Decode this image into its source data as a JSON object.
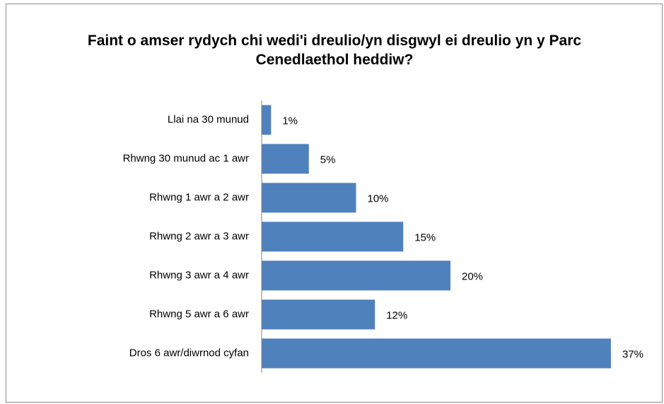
{
  "chart_data": {
    "type": "bar",
    "orientation": "horizontal",
    "title": "Faint o amser rydych chi wedi'i dreulio/yn disgwyl ei dreulio yn y Parc Cenedlaethol heddiw?",
    "categories": [
      "Llai na 30 munud",
      "Rhwng 30 munud ac 1 awr",
      "Rhwng 1 awr a 2 awr",
      "Rhwng 2 awr a 3 awr",
      "Rhwng 3 awr a 4 awr",
      "Rhwng 5 awr a 6 awr",
      "Dros 6 awr/diwrnod cyfan"
    ],
    "values": [
      1,
      5,
      10,
      15,
      20,
      12,
      37
    ],
    "value_labels": [
      "1%",
      "5%",
      "10%",
      "15%",
      "20%",
      "12%",
      "37%"
    ],
    "color": "#4f81bd"
  }
}
